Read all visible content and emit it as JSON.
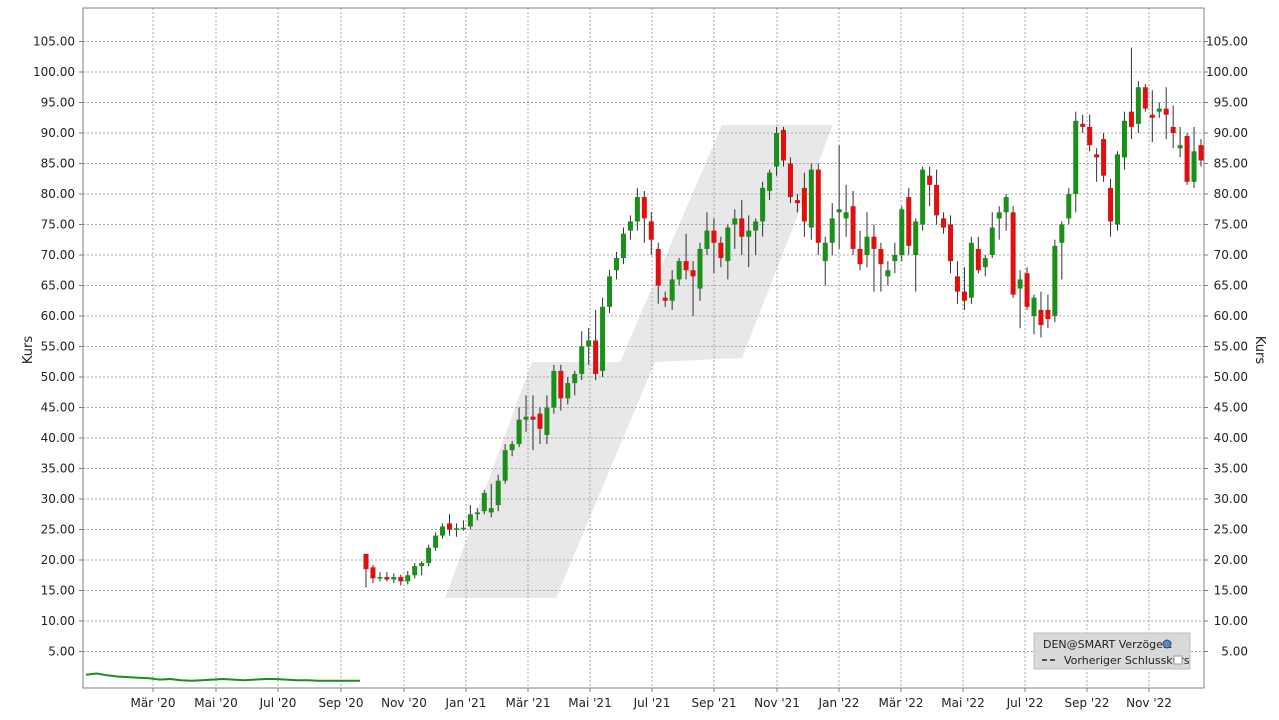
{
  "chart_data": {
    "type": "candlestick",
    "ylabel_left": "Kurs",
    "ylabel_right": "Kurs",
    "ylim": [
      0,
      110
    ],
    "yticks": [
      "5.00",
      "10.00",
      "15.00",
      "20.00",
      "25.00",
      "30.00",
      "35.00",
      "40.00",
      "45.00",
      "50.00",
      "55.00",
      "60.00",
      "65.00",
      "70.00",
      "75.00",
      "80.00",
      "85.00",
      "90.00",
      "95.00",
      "100.00",
      "105.00"
    ],
    "xticks": [
      "Mär '20",
      "Mai '20",
      "Jul '20",
      "Sep '20",
      "Nov '20",
      "Jan '21",
      "Mär '21",
      "Mai '21",
      "Jul '21",
      "Sep '21",
      "Nov '21",
      "Jan '22",
      "Mär '22",
      "Mai '22",
      "Jul '22",
      "Sep '22",
      "Nov '22"
    ],
    "grid": true,
    "legend_position": "bottom-right",
    "legend": [
      {
        "label": "DEN@SMART Verzögert",
        "icon": "globe-icon"
      },
      {
        "label": "Vorheriger Schlusskurs",
        "icon": "dashed-line"
      }
    ],
    "colors": {
      "up": "#1a8f1a",
      "down": "#e01010",
      "background": "#ffffff",
      "grid": "#a0a0a0"
    },
    "pre_split_line": [
      1.2,
      1.4,
      1.1,
      0.9,
      0.8,
      0.7,
      0.6,
      0.4,
      0.5,
      0.3,
      0.2,
      0.3,
      0.4,
      0.5,
      0.4,
      0.3,
      0.4,
      0.5,
      0.5,
      0.4,
      0.3,
      0.3,
      0.2,
      0.2,
      0.2,
      0.2,
      0.2
    ],
    "candles": [
      {
        "o": 21.0,
        "h": 21.0,
        "l": 15.5,
        "c": 18.5
      },
      {
        "o": 18.8,
        "h": 19.2,
        "l": 16.2,
        "c": 17.0
      },
      {
        "o": 17.0,
        "h": 18.0,
        "l": 16.5,
        "c": 17.2
      },
      {
        "o": 17.2,
        "h": 18.0,
        "l": 16.5,
        "c": 16.8
      },
      {
        "o": 16.8,
        "h": 17.8,
        "l": 16.2,
        "c": 17.2
      },
      {
        "o": 17.2,
        "h": 17.6,
        "l": 15.8,
        "c": 16.5
      },
      {
        "o": 16.5,
        "h": 18.2,
        "l": 16.0,
        "c": 17.5
      },
      {
        "o": 17.5,
        "h": 19.5,
        "l": 17.0,
        "c": 19.0
      },
      {
        "o": 19.0,
        "h": 19.8,
        "l": 17.5,
        "c": 19.5
      },
      {
        "o": 19.5,
        "h": 22.5,
        "l": 19.0,
        "c": 22.0
      },
      {
        "o": 22.0,
        "h": 24.5,
        "l": 21.5,
        "c": 24.0
      },
      {
        "o": 24.0,
        "h": 26.0,
        "l": 23.5,
        "c": 25.5
      },
      {
        "o": 26.0,
        "h": 27.5,
        "l": 24.0,
        "c": 25.0
      },
      {
        "o": 25.0,
        "h": 26.0,
        "l": 23.8,
        "c": 25.2
      },
      {
        "o": 25.2,
        "h": 26.5,
        "l": 24.8,
        "c": 25.3
      },
      {
        "o": 25.5,
        "h": 29.0,
        "l": 25.0,
        "c": 27.5
      },
      {
        "o": 27.5,
        "h": 28.5,
        "l": 26.5,
        "c": 27.8
      },
      {
        "o": 28.0,
        "h": 31.5,
        "l": 27.5,
        "c": 31.0
      },
      {
        "o": 27.8,
        "h": 32.5,
        "l": 27.0,
        "c": 28.5
      },
      {
        "o": 29.0,
        "h": 34.0,
        "l": 28.0,
        "c": 33.0
      },
      {
        "o": 33.0,
        "h": 39.0,
        "l": 32.5,
        "c": 38.0
      },
      {
        "o": 38.0,
        "h": 39.5,
        "l": 37.0,
        "c": 39.0
      },
      {
        "o": 39.0,
        "h": 45.0,
        "l": 38.5,
        "c": 43.0
      },
      {
        "o": 43.0,
        "h": 47.0,
        "l": 41.0,
        "c": 43.5
      },
      {
        "o": 43.5,
        "h": 47.0,
        "l": 38.0,
        "c": 43.0
      },
      {
        "o": 44.0,
        "h": 45.0,
        "l": 39.0,
        "c": 41.5
      },
      {
        "o": 40.5,
        "h": 47.0,
        "l": 39.0,
        "c": 45.0
      },
      {
        "o": 45.0,
        "h": 52.0,
        "l": 44.0,
        "c": 51.0
      },
      {
        "o": 51.0,
        "h": 52.0,
        "l": 44.5,
        "c": 46.5
      },
      {
        "o": 46.5,
        "h": 50.0,
        "l": 45.5,
        "c": 49.0
      },
      {
        "o": 49.0,
        "h": 51.0,
        "l": 47.0,
        "c": 50.5
      },
      {
        "o": 50.5,
        "h": 57.5,
        "l": 49.5,
        "c": 55.0
      },
      {
        "o": 55.0,
        "h": 58.0,
        "l": 52.0,
        "c": 56.0
      },
      {
        "o": 56.0,
        "h": 61.0,
        "l": 49.5,
        "c": 50.5
      },
      {
        "o": 51.0,
        "h": 63.0,
        "l": 50.0,
        "c": 61.5
      },
      {
        "o": 61.5,
        "h": 67.5,
        "l": 60.5,
        "c": 66.5
      },
      {
        "o": 67.5,
        "h": 70.5,
        "l": 66.0,
        "c": 69.5
      },
      {
        "o": 69.5,
        "h": 74.5,
        "l": 68.5,
        "c": 73.5
      },
      {
        "o": 74.0,
        "h": 76.5,
        "l": 72.5,
        "c": 75.5
      },
      {
        "o": 75.5,
        "h": 81.0,
        "l": 74.0,
        "c": 79.5
      },
      {
        "o": 79.5,
        "h": 80.5,
        "l": 72.0,
        "c": 76.0
      },
      {
        "o": 75.5,
        "h": 77.0,
        "l": 70.0,
        "c": 72.5
      },
      {
        "o": 71.0,
        "h": 72.0,
        "l": 62.0,
        "c": 65.0
      },
      {
        "o": 63.0,
        "h": 64.0,
        "l": 61.5,
        "c": 62.5
      },
      {
        "o": 62.5,
        "h": 67.5,
        "l": 61.0,
        "c": 66.0
      },
      {
        "o": 66.0,
        "h": 69.5,
        "l": 65.0,
        "c": 69.0
      },
      {
        "o": 69.0,
        "h": 73.5,
        "l": 66.0,
        "c": 67.5
      },
      {
        "o": 67.5,
        "h": 69.0,
        "l": 60.0,
        "c": 66.5
      },
      {
        "o": 64.5,
        "h": 72.0,
        "l": 62.5,
        "c": 71.0
      },
      {
        "o": 71.0,
        "h": 77.0,
        "l": 70.0,
        "c": 74.0
      },
      {
        "o": 74.0,
        "h": 76.0,
        "l": 67.0,
        "c": 72.0
      },
      {
        "o": 72.0,
        "h": 73.0,
        "l": 68.0,
        "c": 69.5
      },
      {
        "o": 69.0,
        "h": 75.0,
        "l": 66.0,
        "c": 74.5
      },
      {
        "o": 75.0,
        "h": 77.5,
        "l": 71.0,
        "c": 76.0
      },
      {
        "o": 76.0,
        "h": 79.0,
        "l": 70.0,
        "c": 73.0
      },
      {
        "o": 73.0,
        "h": 76.5,
        "l": 68.0,
        "c": 74.0
      },
      {
        "o": 74.0,
        "h": 76.0,
        "l": 70.0,
        "c": 75.5
      },
      {
        "o": 75.5,
        "h": 82.0,
        "l": 73.0,
        "c": 81.0
      },
      {
        "o": 80.5,
        "h": 84.0,
        "l": 79.0,
        "c": 83.5
      },
      {
        "o": 84.5,
        "h": 91.0,
        "l": 83.0,
        "c": 90.0
      },
      {
        "o": 90.5,
        "h": 91.0,
        "l": 84.5,
        "c": 85.5
      },
      {
        "o": 85.0,
        "h": 86.0,
        "l": 78.5,
        "c": 79.5
      },
      {
        "o": 79.0,
        "h": 80.0,
        "l": 77.0,
        "c": 78.5
      },
      {
        "o": 81.0,
        "h": 83.5,
        "l": 73.0,
        "c": 75.5
      },
      {
        "o": 74.5,
        "h": 85.0,
        "l": 72.5,
        "c": 84.0
      },
      {
        "o": 84.0,
        "h": 85.0,
        "l": 70.0,
        "c": 72.0
      },
      {
        "o": 69.0,
        "h": 73.0,
        "l": 65.0,
        "c": 72.0
      },
      {
        "o": 72.0,
        "h": 78.5,
        "l": 70.0,
        "c": 76.0
      },
      {
        "o": 77.0,
        "h": 88.0,
        "l": 71.0,
        "c": 77.5
      },
      {
        "o": 76.0,
        "h": 81.5,
        "l": 73.0,
        "c": 77.0
      },
      {
        "o": 78.0,
        "h": 80.5,
        "l": 70.0,
        "c": 71.0
      },
      {
        "o": 71.0,
        "h": 74.0,
        "l": 67.5,
        "c": 68.5
      },
      {
        "o": 70.0,
        "h": 77.0,
        "l": 68.0,
        "c": 73.0
      },
      {
        "o": 73.0,
        "h": 75.0,
        "l": 64.0,
        "c": 71.0
      },
      {
        "o": 71.0,
        "h": 72.0,
        "l": 64.0,
        "c": 68.5
      },
      {
        "o": 66.5,
        "h": 69.0,
        "l": 65.0,
        "c": 67.5
      },
      {
        "o": 69.0,
        "h": 72.0,
        "l": 67.0,
        "c": 70.0
      },
      {
        "o": 70.0,
        "h": 78.0,
        "l": 69.0,
        "c": 77.5
      },
      {
        "o": 79.5,
        "h": 81.0,
        "l": 70.0,
        "c": 71.5
      },
      {
        "o": 70.0,
        "h": 76.0,
        "l": 64.0,
        "c": 75.5
      },
      {
        "o": 75.0,
        "h": 84.5,
        "l": 74.0,
        "c": 84.0
      },
      {
        "o": 83.0,
        "h": 84.5,
        "l": 78.0,
        "c": 81.5
      },
      {
        "o": 81.5,
        "h": 84.0,
        "l": 75.0,
        "c": 76.5
      },
      {
        "o": 76.0,
        "h": 77.0,
        "l": 73.5,
        "c": 74.5
      },
      {
        "o": 75.0,
        "h": 76.5,
        "l": 67.0,
        "c": 69.0
      },
      {
        "o": 66.5,
        "h": 69.0,
        "l": 62.0,
        "c": 64.0
      },
      {
        "o": 64.0,
        "h": 68.0,
        "l": 61.0,
        "c": 62.5
      },
      {
        "o": 63.0,
        "h": 73.0,
        "l": 62.0,
        "c": 72.0
      },
      {
        "o": 71.0,
        "h": 73.0,
        "l": 67.0,
        "c": 67.5
      },
      {
        "o": 68.0,
        "h": 70.0,
        "l": 66.5,
        "c": 69.5
      },
      {
        "o": 70.0,
        "h": 77.0,
        "l": 69.5,
        "c": 74.5
      },
      {
        "o": 76.0,
        "h": 78.0,
        "l": 72.5,
        "c": 77.0
      },
      {
        "o": 77.0,
        "h": 80.0,
        "l": 74.0,
        "c": 79.5
      },
      {
        "o": 77.0,
        "h": 78.0,
        "l": 63.0,
        "c": 63.5
      },
      {
        "o": 64.5,
        "h": 67.5,
        "l": 58.0,
        "c": 66.0
      },
      {
        "o": 67.0,
        "h": 68.0,
        "l": 61.0,
        "c": 61.5
      },
      {
        "o": 60.0,
        "h": 63.5,
        "l": 57.0,
        "c": 63.0
      },
      {
        "o": 61.0,
        "h": 64.0,
        "l": 56.5,
        "c": 58.5
      },
      {
        "o": 61.0,
        "h": 63.5,
        "l": 58.0,
        "c": 59.5
      },
      {
        "o": 60.0,
        "h": 72.5,
        "l": 59.0,
        "c": 71.5
      },
      {
        "o": 72.0,
        "h": 75.5,
        "l": 66.0,
        "c": 75.0
      },
      {
        "o": 76.0,
        "h": 81.0,
        "l": 75.0,
        "c": 80.0
      },
      {
        "o": 80.0,
        "h": 93.5,
        "l": 77.0,
        "c": 92.0
      },
      {
        "o": 91.5,
        "h": 93.0,
        "l": 90.0,
        "c": 91.0
      },
      {
        "o": 91.0,
        "h": 93.0,
        "l": 87.0,
        "c": 88.0
      },
      {
        "o": 86.5,
        "h": 87.5,
        "l": 82.0,
        "c": 86.0
      },
      {
        "o": 89.0,
        "h": 90.0,
        "l": 82.0,
        "c": 83.0
      },
      {
        "o": 81.0,
        "h": 82.5,
        "l": 73.0,
        "c": 75.5
      },
      {
        "o": 75.0,
        "h": 87.0,
        "l": 74.0,
        "c": 86.5
      },
      {
        "o": 86.0,
        "h": 93.5,
        "l": 84.0,
        "c": 92.0
      },
      {
        "o": 93.5,
        "h": 104.0,
        "l": 89.0,
        "c": 91.0
      },
      {
        "o": 91.5,
        "h": 98.5,
        "l": 90.0,
        "c": 97.5
      },
      {
        "o": 97.5,
        "h": 98.0,
        "l": 93.5,
        "c": 94.0
      },
      {
        "o": 93.0,
        "h": 97.0,
        "l": 88.5,
        "c": 92.5
      },
      {
        "o": 93.5,
        "h": 95.0,
        "l": 92.5,
        "c": 94.0
      },
      {
        "o": 94.0,
        "h": 97.5,
        "l": 89.0,
        "c": 93.0
      },
      {
        "o": 91.0,
        "h": 94.5,
        "l": 87.5,
        "c": 90.0
      },
      {
        "o": 87.5,
        "h": 91.0,
        "l": 86.0,
        "c": 88.0
      },
      {
        "o": 89.5,
        "h": 90.0,
        "l": 81.5,
        "c": 82.0
      },
      {
        "o": 82.0,
        "h": 91.0,
        "l": 81.0,
        "c": 87.0
      },
      {
        "o": 88.0,
        "h": 89.0,
        "l": 84.5,
        "c": 85.5
      }
    ]
  }
}
